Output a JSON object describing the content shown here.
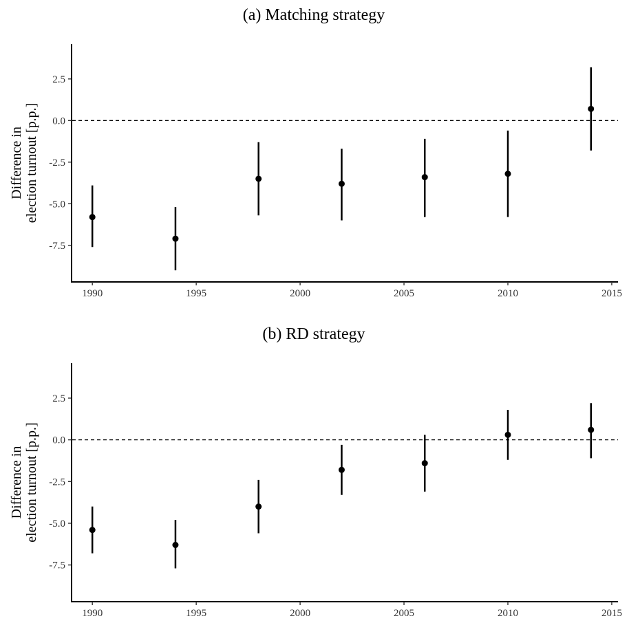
{
  "chart_data": [
    {
      "type": "scatter",
      "title": "(a) Matching strategy",
      "xlabel": "",
      "ylabel": [
        "Difference in",
        "election turnout [p.p.]"
      ],
      "xlim": [
        1989,
        2015.3
      ],
      "ylim": [
        -9.7,
        4.6
      ],
      "x_ticks": [
        1990,
        1995,
        2000,
        2005,
        2010,
        2015
      ],
      "y_ticks": [
        2.5,
        0.0,
        -2.5,
        -5.0,
        -7.5
      ],
      "y_tick_labels": [
        "2.5",
        "0.0",
        "-2.5",
        "-5.0",
        "-7.5"
      ],
      "reference_line": {
        "y": 0,
        "style": "dashed"
      },
      "grid": false,
      "legend": "none",
      "points": [
        {
          "x": 1990,
          "y": -5.8,
          "lo": -7.6,
          "hi": -3.9
        },
        {
          "x": 1994,
          "y": -7.1,
          "lo": -9.0,
          "hi": -5.2
        },
        {
          "x": 1998,
          "y": -3.5,
          "lo": -5.7,
          "hi": -1.3
        },
        {
          "x": 2002,
          "y": -3.8,
          "lo": -6.0,
          "hi": -1.7
        },
        {
          "x": 2006,
          "y": -3.4,
          "lo": -5.8,
          "hi": -1.1
        },
        {
          "x": 2010,
          "y": -3.2,
          "lo": -5.8,
          "hi": -0.6
        },
        {
          "x": 2014,
          "y": 0.7,
          "lo": -1.8,
          "hi": 3.2
        }
      ]
    },
    {
      "type": "scatter",
      "title": "(b) RD strategy",
      "xlabel": "",
      "ylabel": [
        "Difference in",
        "election turnout [p.p.]"
      ],
      "xlim": [
        1989,
        2015.3
      ],
      "ylim": [
        -9.7,
        4.6
      ],
      "x_ticks": [
        1990,
        1995,
        2000,
        2005,
        2010,
        2015
      ],
      "y_ticks": [
        2.5,
        0.0,
        -2.5,
        -5.0,
        -7.5
      ],
      "y_tick_labels": [
        "2.5",
        "0.0",
        "-2.5",
        "-5.0",
        "-7.5"
      ],
      "reference_line": {
        "y": 0,
        "style": "dashed"
      },
      "grid": false,
      "legend": "none",
      "points": [
        {
          "x": 1990,
          "y": -5.4,
          "lo": -6.8,
          "hi": -4.0
        },
        {
          "x": 1994,
          "y": -6.3,
          "lo": -7.7,
          "hi": -4.8
        },
        {
          "x": 1998,
          "y": -4.0,
          "lo": -5.6,
          "hi": -2.4
        },
        {
          "x": 2002,
          "y": -1.8,
          "lo": -3.3,
          "hi": -0.3
        },
        {
          "x": 2006,
          "y": -1.4,
          "lo": -3.1,
          "hi": 0.3
        },
        {
          "x": 2010,
          "y": 0.3,
          "lo": -1.2,
          "hi": 1.8
        },
        {
          "x": 2014,
          "y": 0.6,
          "lo": -1.1,
          "hi": 2.2
        }
      ]
    }
  ]
}
